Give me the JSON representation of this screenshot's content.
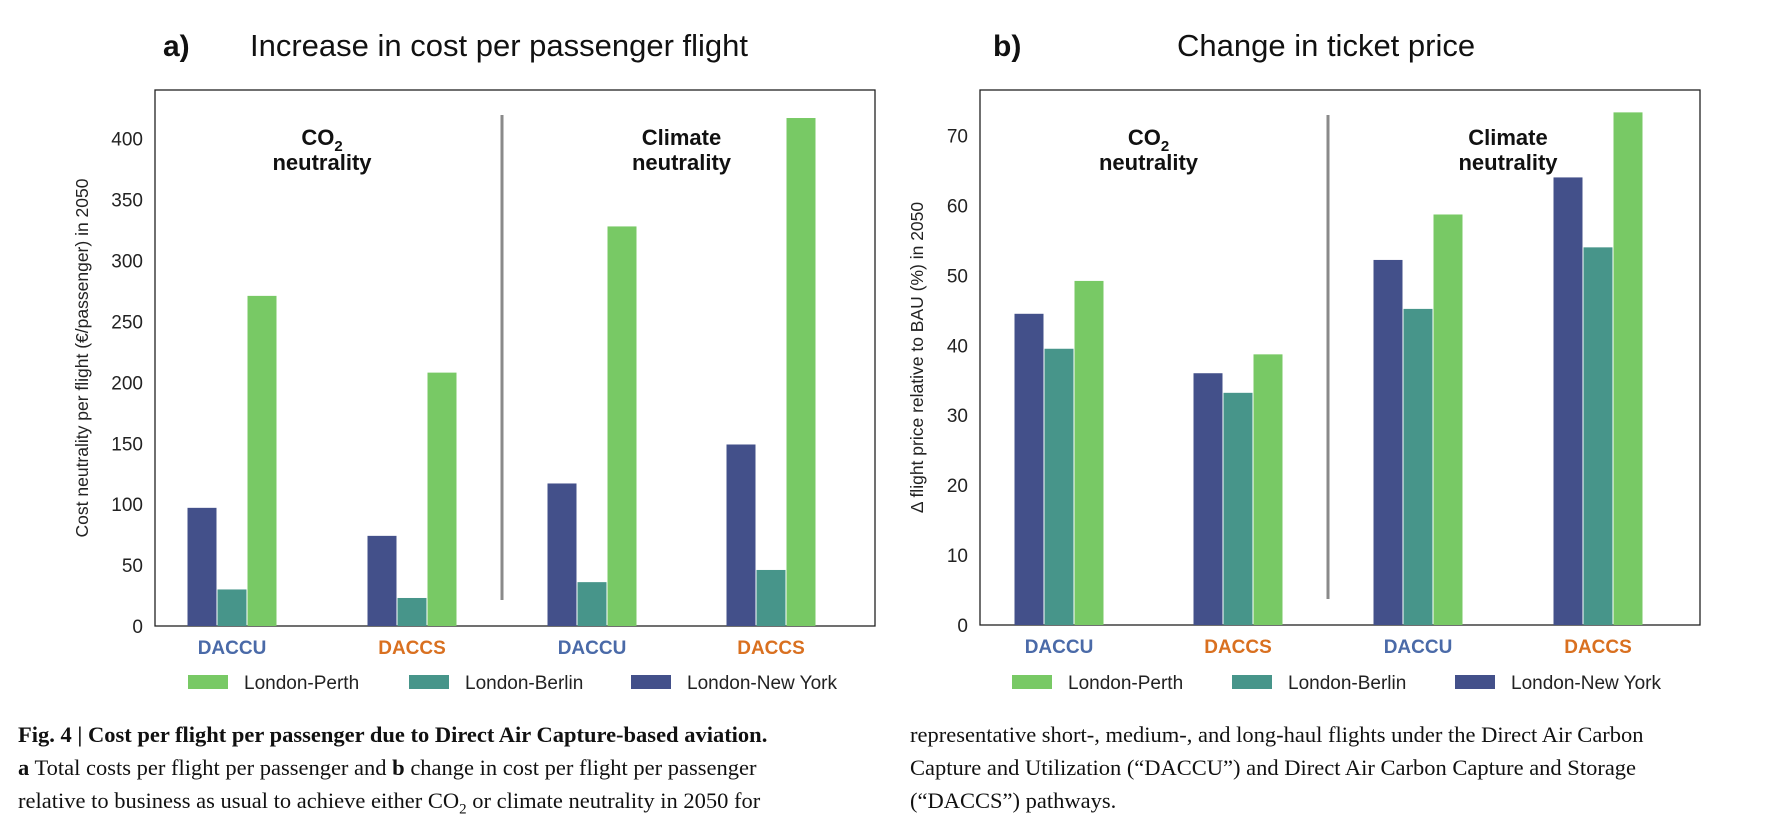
{
  "colors": {
    "new_york": "#43508a",
    "berlin": "#47958a",
    "perth": "#78c965",
    "daccu_label": "#4a6aa8",
    "daccs_label": "#d97020",
    "divider": "#8a8a8a"
  },
  "chart_data": [
    {
      "type": "bar",
      "panel_letter": "a)",
      "title": "Increase in cost per passenger flight",
      "ylabel": "Cost neutrality per flight (€/passenger) in 2050",
      "xlabel": "",
      "ylim": [
        0,
        440
      ],
      "yticks": [
        0,
        50,
        100,
        150,
        200,
        250,
        300,
        350,
        400
      ],
      "categories": [
        "DACCU",
        "DACCS",
        "DACCU",
        "DACCS"
      ],
      "groups": [
        "CO2 neutrality",
        "Climate neutrality"
      ],
      "series": [
        {
          "name": "London-New York",
          "values": [
            97,
            74,
            117,
            149
          ]
        },
        {
          "name": "London-Berlin",
          "values": [
            30,
            23,
            36,
            46
          ]
        },
        {
          "name": "London-Perth",
          "values": [
            271,
            208,
            328,
            417
          ]
        }
      ],
      "legend_position": "bottom"
    },
    {
      "type": "bar",
      "panel_letter": "b)",
      "title": "Change in ticket price",
      "ylabel": "Δ flight price relative to BAU (%) in 2050",
      "xlabel": "",
      "ylim": [
        0,
        76.5
      ],
      "yticks": [
        0,
        10,
        20,
        30,
        40,
        50,
        60,
        70
      ],
      "categories": [
        "DACCU",
        "DACCS",
        "DACCU",
        "DACCS"
      ],
      "groups": [
        "CO2 neutrality",
        "Climate neutrality"
      ],
      "series": [
        {
          "name": "London-New York",
          "values": [
            44.5,
            36,
            52.2,
            64
          ]
        },
        {
          "name": "London-Berlin",
          "values": [
            39.5,
            33.2,
            45.2,
            54
          ]
        },
        {
          "name": "London-Perth",
          "values": [
            49.2,
            38.7,
            58.7,
            73.3
          ]
        }
      ],
      "legend_position": "bottom"
    }
  ],
  "group_labels": {
    "co2_line1": "CO",
    "co2_sub": "2",
    "neutrality": "neutrality",
    "climate": "Climate"
  },
  "legend_order": [
    "London-Perth",
    "London-Berlin",
    "London-New York"
  ],
  "caption": {
    "fig_label": "Fig. 4 | Cost per flight per passenger due to Direct Air Capture-based aviation.",
    "a_label": "a",
    "line2_a": " Total costs per flight per passenger and ",
    "b_label": "b",
    "line2_b": " change in cost per flight per passenger",
    "line3_pre": "relative to business as usual to achieve either CO",
    "line3_sub": "2",
    "line3_post": " or climate neutrality in 2050 for",
    "right_line1": "representative short-, medium-, and long-haul flights under the Direct Air Carbon",
    "right_line2": "Capture and Utilization (“DACCU”) and Direct Air Carbon Capture and Storage",
    "right_line3": "(“DACCS”) pathways."
  }
}
